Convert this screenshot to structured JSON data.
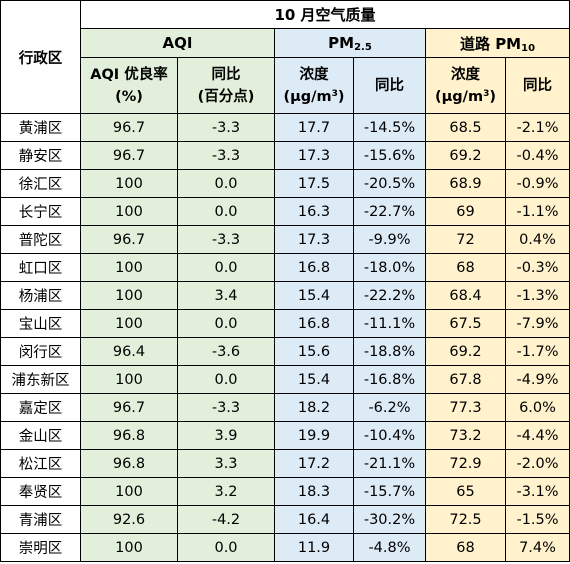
{
  "table": {
    "title": "10 月空气质量",
    "region_header": "行政区",
    "groups": {
      "aqi": "AQI",
      "pm25_main": "PM",
      "pm25_sub": "2.5",
      "pm10_main": "道路 PM",
      "pm10_sub": "10"
    },
    "subheaders": {
      "aqi_rate_line1": "AQI 优良率",
      "aqi_rate_line2": "(%)",
      "aqi_yoy_line1": "同比",
      "aqi_yoy_line2": "(百分点)",
      "pm25_conc_line1": "浓度",
      "pm25_conc_unit": "(μg/m",
      "pm25_conc_sup": "3",
      "pm25_conc_close": ")",
      "pm25_yoy": "同比",
      "pm10_conc_line1": "浓度",
      "pm10_conc_unit": "(μg/m",
      "pm10_conc_sup": "3",
      "pm10_conc_close": ")",
      "pm10_yoy": "同比"
    },
    "rows": [
      [
        "黄浦区",
        "96.7",
        "-3.3",
        "17.7",
        "-14.5%",
        "68.5",
        "-2.1%"
      ],
      [
        "静安区",
        "96.7",
        "-3.3",
        "17.3",
        "-15.6%",
        "69.2",
        "-0.4%"
      ],
      [
        "徐汇区",
        "100",
        "0.0",
        "17.5",
        "-20.5%",
        "68.9",
        "-0.9%"
      ],
      [
        "长宁区",
        "100",
        "0.0",
        "16.3",
        "-22.7%",
        "69",
        "-1.1%"
      ],
      [
        "普陀区",
        "96.7",
        "-3.3",
        "17.3",
        "-9.9%",
        "72",
        "0.4%"
      ],
      [
        "虹口区",
        "100",
        "0.0",
        "16.8",
        "-18.0%",
        "68",
        "-0.3%"
      ],
      [
        "杨浦区",
        "100",
        "3.4",
        "15.4",
        "-22.2%",
        "68.4",
        "-1.3%"
      ],
      [
        "宝山区",
        "100",
        "0.0",
        "16.8",
        "-11.1%",
        "67.5",
        "-7.9%"
      ],
      [
        "闵行区",
        "96.4",
        "-3.6",
        "15.6",
        "-18.8%",
        "69.2",
        "-1.7%"
      ],
      [
        "浦东新区",
        "100",
        "0.0",
        "15.4",
        "-16.8%",
        "67.8",
        "-4.9%"
      ],
      [
        "嘉定区",
        "96.7",
        "-3.3",
        "18.2",
        "-6.2%",
        "77.3",
        "6.0%"
      ],
      [
        "金山区",
        "96.8",
        "3.9",
        "19.9",
        "-10.4%",
        "73.2",
        "-4.4%"
      ],
      [
        "松江区",
        "96.8",
        "3.3",
        "17.2",
        "-21.1%",
        "72.9",
        "-2.0%"
      ],
      [
        "奉贤区",
        "100",
        "3.2",
        "18.3",
        "-15.7%",
        "65",
        "-3.1%"
      ],
      [
        "青浦区",
        "92.6",
        "-4.2",
        "16.4",
        "-30.2%",
        "72.5",
        "-1.5%"
      ],
      [
        "崇明区",
        "100",
        "0.0",
        "11.9",
        "-4.8%",
        "68",
        "7.4%"
      ]
    ],
    "colors": {
      "aqi_fill": "#e2efda",
      "pm25_fill": "#ddebf7",
      "pm10_fill": "#fff2cc",
      "border": "#000000"
    }
  }
}
